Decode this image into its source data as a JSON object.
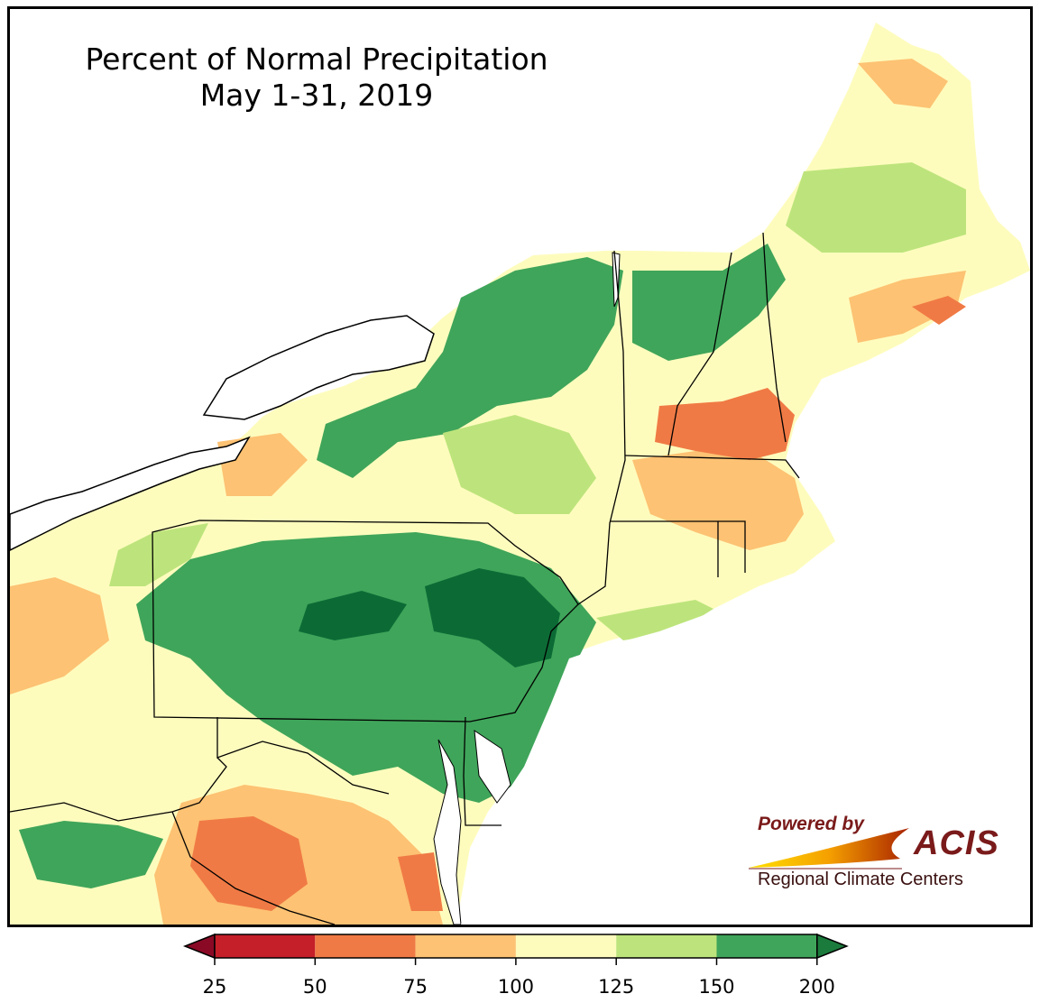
{
  "title": {
    "line1": "Percent of Normal Precipitation",
    "line2": "May 1-31, 2019"
  },
  "logo": {
    "powered_by": "Powered by",
    "acis": "ACIS",
    "regional": "Regional Climate Centers"
  },
  "legend": {
    "ticks": [
      "25",
      "50",
      "75",
      "100",
      "125",
      "150",
      "200"
    ],
    "bins": [
      {
        "from": 25,
        "to": 50,
        "color": "#c51f2a"
      },
      {
        "from": 50,
        "to": 75,
        "color": "#f07a45"
      },
      {
        "from": 75,
        "to": 100,
        "color": "#fdc273"
      },
      {
        "from": 100,
        "to": 125,
        "color": "#fefcbd"
      },
      {
        "from": 125,
        "to": 150,
        "color": "#bde47c"
      },
      {
        "from": 150,
        "to": 200,
        "color": "#3fa55a"
      }
    ],
    "under_color": "#8a0a26",
    "over_color": "#1b7b3c"
  },
  "colors": {
    "water": "#ffffff",
    "state_border": "#000000",
    "county_border": "#9a9a9a",
    "very_wet": "#0c6b35"
  }
}
